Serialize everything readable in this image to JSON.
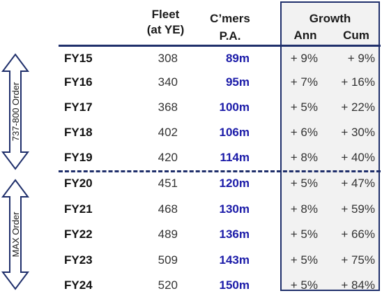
{
  "headers": {
    "fleet_line1": "Fleet",
    "fleet_line2": "(at YE)",
    "customers_line1": "C’mers",
    "customers_line2": "P.A.",
    "growth": "Growth",
    "annual": "Ann",
    "cumulative": "Cum"
  },
  "side_labels": {
    "upper": "737-800 Order",
    "lower": "MAX Order"
  },
  "rows": [
    {
      "fy": "FY15",
      "fleet": "308",
      "customers": "89m",
      "ann": "+ 9%",
      "cum": "+ 9%"
    },
    {
      "fy": "FY16",
      "fleet": "340",
      "customers": "95m",
      "ann": "+ 7%",
      "cum": "+ 16%"
    },
    {
      "fy": "FY17",
      "fleet": "368",
      "customers": "100m",
      "ann": "+ 5%",
      "cum": "+ 22%"
    },
    {
      "fy": "FY18",
      "fleet": "402",
      "customers": "106m",
      "ann": "+ 6%",
      "cum": "+ 30%"
    },
    {
      "fy": "FY19",
      "fleet": "420",
      "customers": "114m",
      "ann": "+ 8%",
      "cum": "+ 40%"
    },
    {
      "fy": "FY20",
      "fleet": "451",
      "customers": "120m",
      "ann": "+ 5%",
      "cum": "+ 47%"
    },
    {
      "fy": "FY21",
      "fleet": "468",
      "customers": "130m",
      "ann": "+ 8%",
      "cum": "+ 59%"
    },
    {
      "fy": "FY22",
      "fleet": "489",
      "customers": "136m",
      "ann": "+ 5%",
      "cum": "+ 66%"
    },
    {
      "fy": "FY23",
      "fleet": "509",
      "customers": "143m",
      "ann": "+ 5%",
      "cum": "+ 75%"
    },
    {
      "fy": "FY24",
      "fleet": "520",
      "customers": "150m",
      "ann": "+ 5%",
      "cum": "+ 84%"
    }
  ],
  "colors": {
    "border": "#1f2f6b",
    "customers_text": "#1a1aa8",
    "growth_bg": "#f2f2f2"
  }
}
